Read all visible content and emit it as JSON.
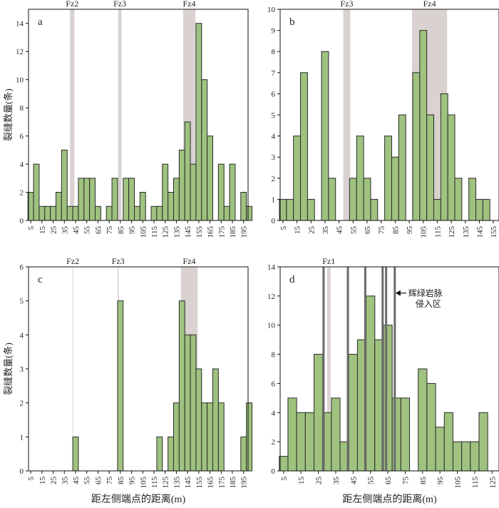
{
  "figure": {
    "y_axis_label": "裂缝数量(条)",
    "x_axis_label": "距左侧端点的距离(m)"
  },
  "colors": {
    "bar_fill": "#9fc27f",
    "bar_stroke": "#2a2a2a",
    "fault_band": "#d9d2d0",
    "dike_line": "#6a6a6a"
  },
  "chart_data": [
    {
      "id": "a",
      "type": "bar",
      "panel_label": "a",
      "x_start": 5,
      "x_step": 5,
      "xlim": [
        3,
        199
      ],
      "ylim": [
        0,
        15
      ],
      "y_ticks": [
        0,
        2,
        4,
        6,
        8,
        10,
        12,
        14
      ],
      "x_tick_labels": [
        "5",
        "15",
        "25",
        "35",
        "45",
        "55",
        "65",
        "75",
        "85",
        "95",
        "105",
        "115",
        "125",
        "135",
        "145",
        "155",
        "165",
        "175",
        "185",
        "195"
      ],
      "values": [
        2,
        4,
        1,
        1,
        1,
        2,
        5,
        1,
        1,
        3,
        3,
        3,
        1,
        0,
        1,
        3,
        0,
        3,
        3,
        1,
        2,
        0,
        1,
        1,
        4,
        2,
        3,
        5,
        7,
        4,
        14,
        10,
        6,
        0,
        4,
        1,
        4,
        0,
        2,
        1
      ],
      "fault_zones": [
        {
          "label": "Fz2",
          "from": 40,
          "to": 44
        },
        {
          "label": "Fz3",
          "from": 83,
          "to": 86
        },
        {
          "label": "Fz4",
          "from": 141,
          "to": 152
        }
      ],
      "ylabel": "裂缝数量(条)",
      "xlabel": ""
    },
    {
      "id": "b",
      "type": "bar",
      "panel_label": "b",
      "x_start": 5,
      "x_step": 5,
      "xlim": [
        3,
        159
      ],
      "ylim": [
        0,
        10
      ],
      "y_ticks": [
        0,
        1,
        2,
        3,
        4,
        5,
        6,
        7,
        8,
        9,
        10
      ],
      "x_tick_labels": [
        "5",
        "15",
        "25",
        "35",
        "45",
        "55",
        "65",
        "75",
        "85",
        "95",
        "105",
        "115",
        "125",
        "135",
        "145",
        "155"
      ],
      "values": [
        1,
        1,
        4,
        7,
        1,
        0,
        8,
        2,
        0,
        0,
        2,
        4,
        2,
        1,
        0,
        4,
        3,
        5,
        0,
        7,
        9,
        5,
        1,
        6,
        5,
        2,
        0,
        2,
        1,
        1
      ],
      "fault_zones": [
        {
          "label": "Fz3",
          "from": 48,
          "to": 53
        },
        {
          "label": "Fz4",
          "from": 97,
          "to": 122
        }
      ],
      "ylabel": "",
      "xlabel": ""
    },
    {
      "id": "c",
      "type": "bar",
      "panel_label": "c",
      "x_start": 5,
      "x_step": 5,
      "xlim": [
        3,
        199
      ],
      "ylim": [
        0,
        6
      ],
      "y_ticks": [
        0,
        1,
        2,
        3,
        4,
        5,
        6
      ],
      "x_tick_labels": [
        "5",
        "15",
        "25",
        "35",
        "45",
        "55",
        "65",
        "75",
        "85",
        "95",
        "105",
        "115",
        "125",
        "135",
        "145",
        "155",
        "165",
        "175",
        "185",
        "195"
      ],
      "values": [
        0,
        0,
        0,
        0,
        0,
        0,
        0,
        0,
        1,
        0,
        0,
        0,
        0,
        0,
        0,
        0,
        5,
        0,
        0,
        0,
        0,
        0,
        0,
        1,
        0,
        1,
        2,
        5,
        4,
        4,
        3,
        2,
        2,
        3,
        2,
        0,
        0,
        0,
        1,
        2
      ],
      "fault_zones": [
        {
          "label": "Fz2",
          "from": 42.3,
          "to": 42.8
        },
        {
          "label": "Fz3",
          "from": 82.5,
          "to": 83.5
        },
        {
          "label": "Fz4",
          "from": 139,
          "to": 154
        }
      ],
      "ylabel": "裂缝数量(条)",
      "xlabel": "距左侧端点的距离(m)"
    },
    {
      "id": "d",
      "type": "bar",
      "panel_label": "d",
      "x_start": 5,
      "x_step": 5,
      "xlim": [
        3,
        129
      ],
      "ylim": [
        0,
        14
      ],
      "y_ticks": [
        0,
        2,
        4,
        6,
        8,
        10,
        12,
        14
      ],
      "x_tick_labels": [
        "5",
        "15",
        "25",
        "35",
        "45",
        "55",
        "65",
        "75",
        "85",
        "95",
        "105",
        "115",
        "125"
      ],
      "values": [
        1,
        5,
        4,
        4,
        8,
        4,
        5,
        2,
        8,
        9,
        12,
        9,
        10,
        5,
        5,
        0,
        7,
        6,
        3,
        4,
        2,
        2,
        2,
        4
      ],
      "fault_zones": [
        {
          "label": "Fz1",
          "from": 30,
          "to": 32
        }
      ],
      "dikes": [
        28,
        42,
        52,
        62,
        64,
        69
      ],
      "annotation": {
        "text_line1": "辉绿岩脉",
        "text_line2": "侵入区",
        "arrow_target_x": 69,
        "arrow_target_y": 12.2
      },
      "ylabel": "",
      "xlabel": "距左侧端点的距离(m)"
    }
  ]
}
